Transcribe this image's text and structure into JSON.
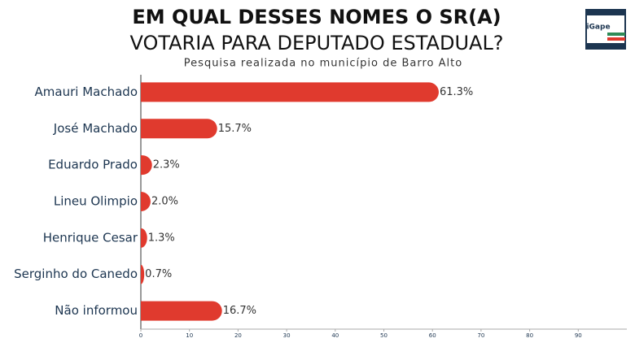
{
  "chart_data": {
    "type": "bar",
    "orientation": "horizontal",
    "title": [
      "EM QUAL DESSES NOMES O SR(A)",
      "VOTARIA PARA DEPUTADO ESTADUAL?"
    ],
    "subtitle": "Pesquisa realizada no município de Barro Alto",
    "logo": "iGape",
    "categories": [
      "Amauri Machado",
      "José Machado",
      "Eduardo Prado",
      "Lineu Olimpio",
      "Henrique Cesar",
      "Serginho do Canedo",
      "Não informou"
    ],
    "values": [
      61.3,
      15.7,
      2.3,
      2.0,
      1.3,
      0.7,
      16.7
    ],
    "value_labels": [
      "61.3%",
      "15.7%",
      "2.3%",
      "2.0%",
      "1.3%",
      "0.7%",
      "16.7%"
    ],
    "color": "#e03a2e",
    "xlim": [
      0,
      100
    ],
    "xticks": [
      0,
      10,
      20,
      30,
      40,
      50,
      60,
      70,
      80,
      90
    ]
  }
}
